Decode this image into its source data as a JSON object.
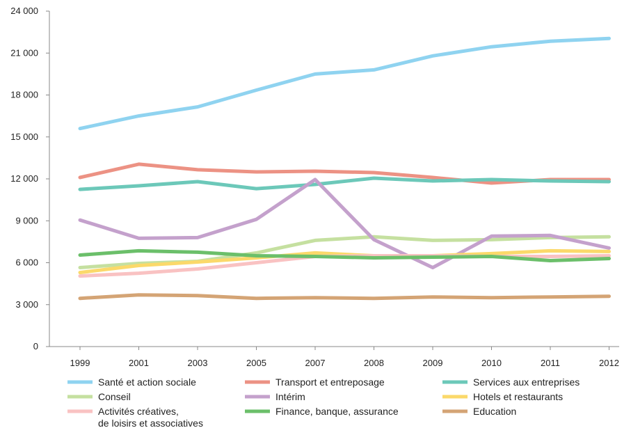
{
  "chart_data": {
    "type": "line",
    "categories": [
      "1999",
      "2001",
      "2003",
      "2005",
      "2007",
      "2008",
      "2009",
      "2010",
      "2011",
      "2012"
    ],
    "ylim": [
      0,
      24000
    ],
    "yticks": [
      0,
      3000,
      6000,
      9000,
      12000,
      15000,
      18000,
      21000,
      24000
    ],
    "ytick_labels": [
      "0",
      "3 000",
      "6 000",
      "9 000",
      "12 000",
      "15 000",
      "18 000",
      "21 000",
      "24 000"
    ],
    "grid": false,
    "legend_position": "bottom",
    "series": [
      {
        "name": "Santé et action sociale",
        "color": "#8fd3f0",
        "values": [
          15600,
          16500,
          17150,
          18350,
          19500,
          19800,
          20800,
          21450,
          21850,
          22050
        ]
      },
      {
        "name": "Transport et entreposage",
        "color": "#ec9284",
        "values": [
          12100,
          13050,
          12650,
          12500,
          12550,
          12450,
          12100,
          11700,
          11950,
          11950
        ]
      },
      {
        "name": "Services aux entreprises",
        "color": "#6cc8b9",
        "values": [
          11250,
          11500,
          11800,
          11300,
          11600,
          12050,
          11850,
          11950,
          11850,
          11800
        ]
      },
      {
        "name": "Conseil",
        "color": "#c5e0a0",
        "values": [
          5650,
          5950,
          6100,
          6700,
          7600,
          7850,
          7600,
          7650,
          7800,
          7850
        ]
      },
      {
        "name": "Intérim",
        "color": "#c4a1cc",
        "values": [
          9050,
          7750,
          7800,
          9100,
          11950,
          7650,
          5650,
          7900,
          7950,
          7050
        ]
      },
      {
        "name": "Hotels et restaurants",
        "color": "#fbd96a",
        "values": [
          5300,
          5800,
          6050,
          6350,
          6700,
          6500,
          6500,
          6650,
          6850,
          6800
        ]
      },
      {
        "name": "Activités créatives, de loisirs et associatives",
        "label_lines": [
          "Activités créatives,",
          "de loisirs et associatives"
        ],
        "color": "#f9c2c2",
        "values": [
          5050,
          5250,
          5550,
          6000,
          6450,
          6500,
          6500,
          6450,
          6450,
          6500
        ]
      },
      {
        "name": "Finance, banque, assurance",
        "color": "#6bbf6a",
        "values": [
          6550,
          6850,
          6750,
          6500,
          6450,
          6350,
          6400,
          6450,
          6150,
          6300
        ]
      },
      {
        "name": "Education",
        "color": "#d4a475",
        "values": [
          3450,
          3700,
          3650,
          3450,
          3500,
          3450,
          3550,
          3500,
          3550,
          3600
        ]
      }
    ]
  }
}
